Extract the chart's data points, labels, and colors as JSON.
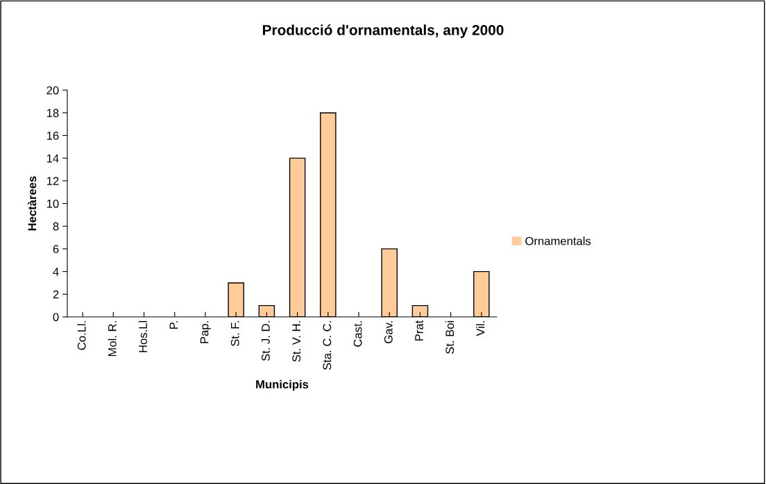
{
  "chart_data": {
    "type": "bar",
    "title": "Producció d'ornamentals, any 2000",
    "xlabel": "Municipis",
    "ylabel": "Hectàrees",
    "categories": [
      "Co.Ll.",
      "Mol. R.",
      "Hos.Ll",
      "P.",
      "Pap.",
      "St. F.",
      "St. J. D.",
      "St. V. H.",
      "Sta. C. C.",
      "Cast.",
      "Gav.",
      "Prat",
      "St. Boi",
      "Vil."
    ],
    "series": [
      {
        "name": "Ornamentals",
        "color": "#ffcc99",
        "values": [
          0,
          0,
          0,
          0,
          0,
          3,
          1,
          14,
          18,
          0,
          6,
          1,
          0,
          4
        ]
      }
    ],
    "ylim": [
      0,
      20
    ],
    "yticks": [
      0,
      2,
      4,
      6,
      8,
      10,
      12,
      14,
      16,
      18,
      20
    ],
    "grid": false,
    "legend": "right"
  }
}
